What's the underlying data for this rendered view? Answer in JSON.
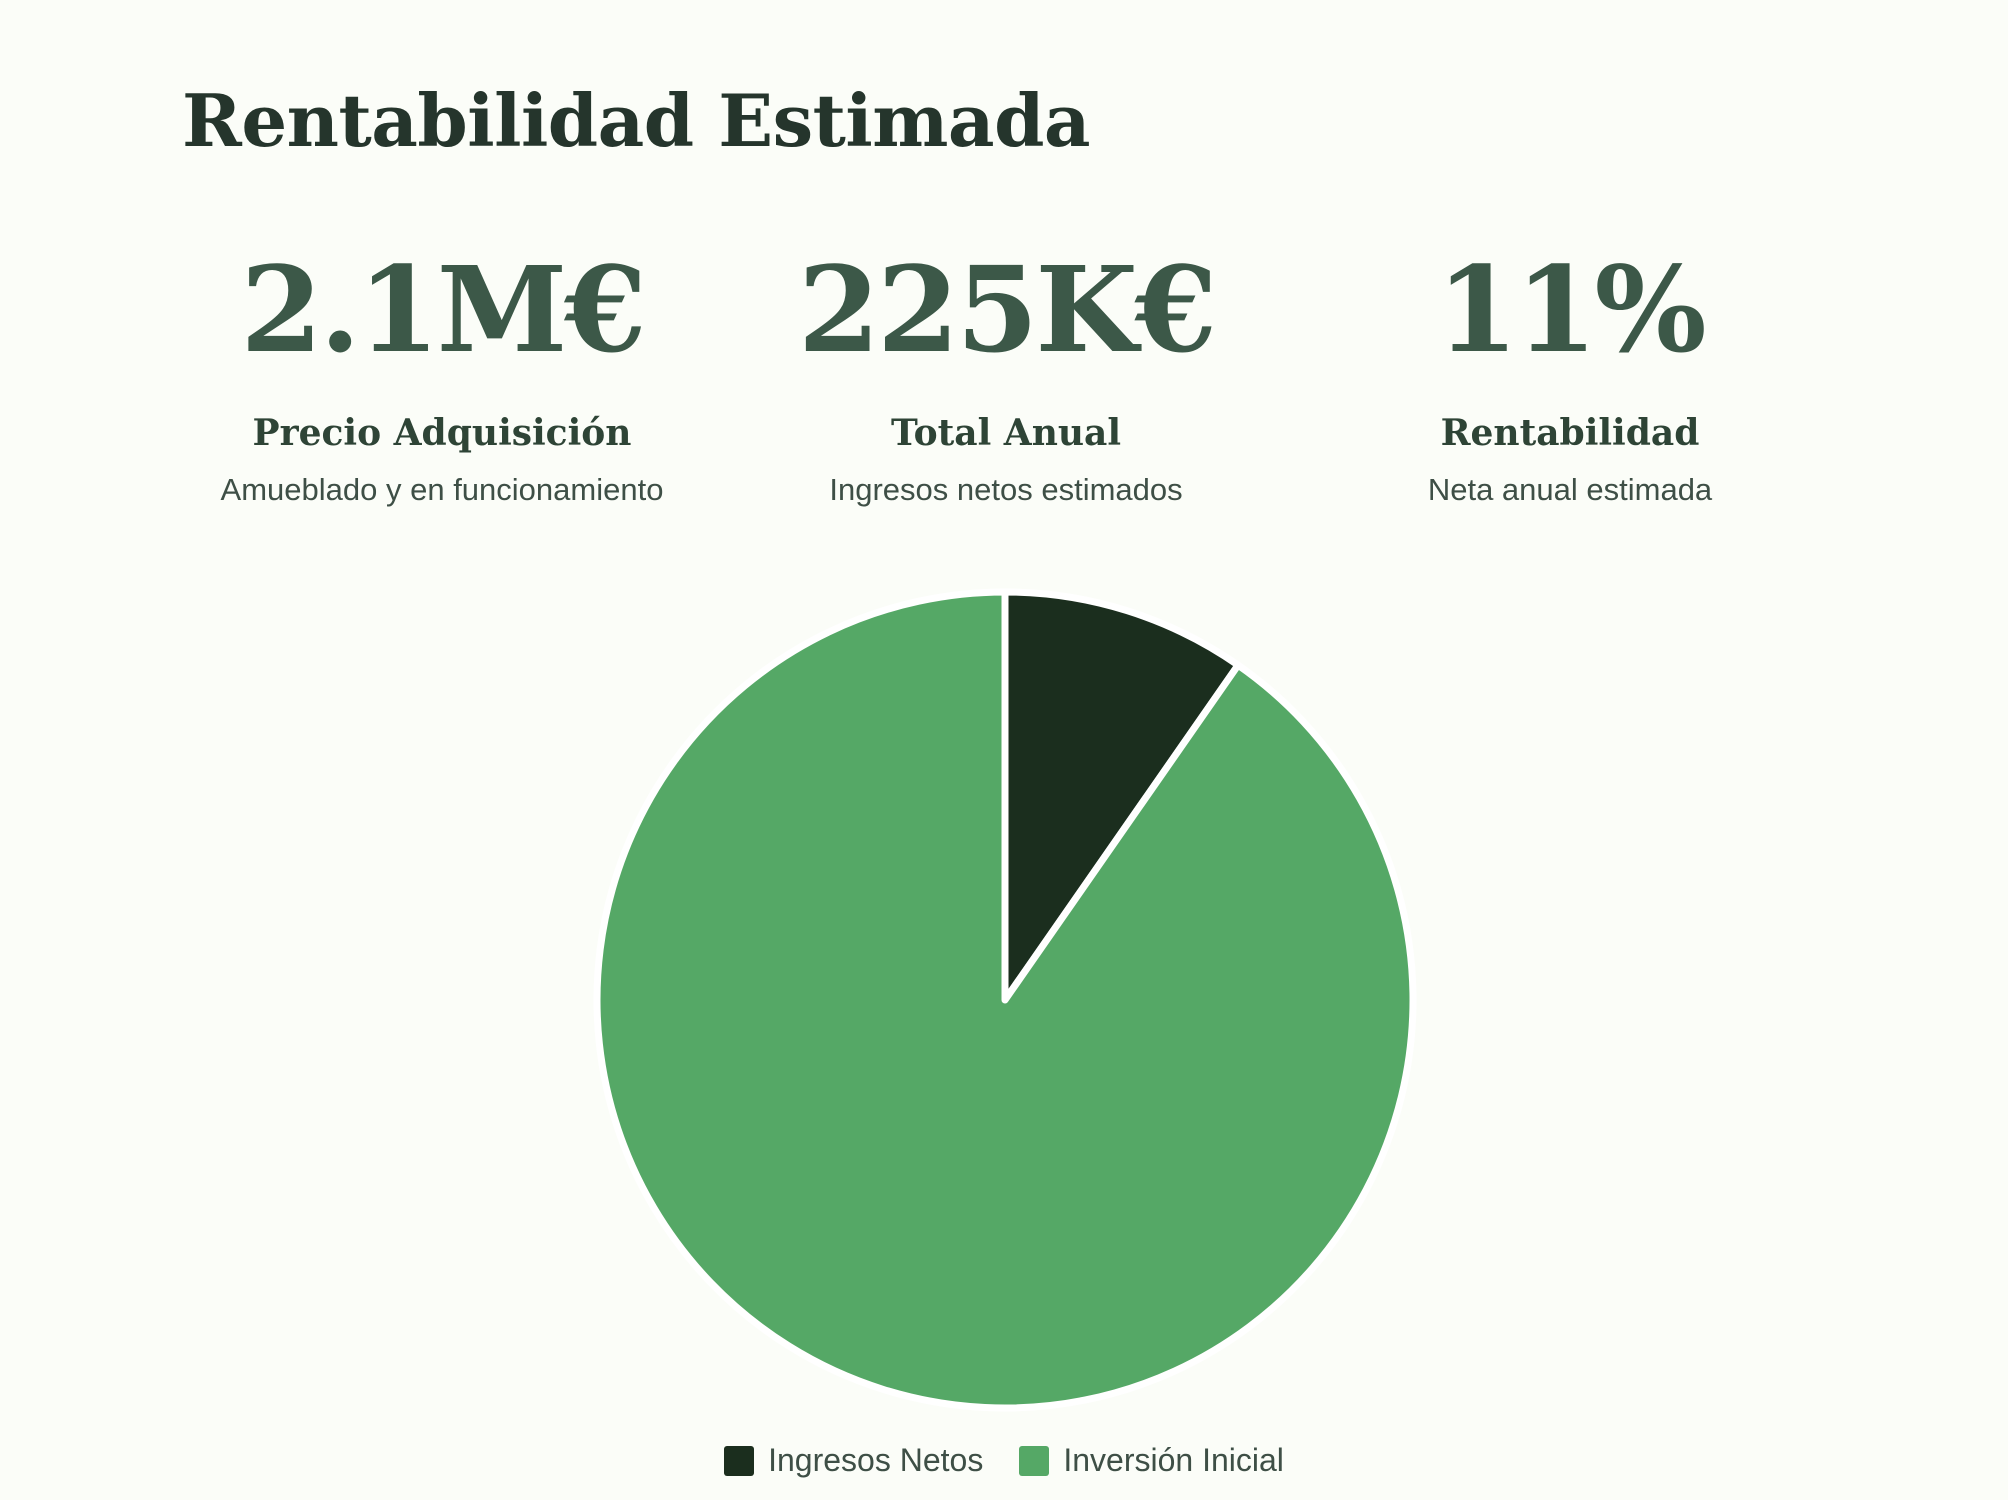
{
  "page": {
    "title": "Rentabilidad Estimada"
  },
  "stats": [
    {
      "value": "2.1M€",
      "label": "Precio Adquisición",
      "description": "Amueblado y en funcionamiento"
    },
    {
      "value": "225K€",
      "label": "Total Anual",
      "description": "Ingresos netos estimados"
    },
    {
      "value": "11%",
      "label": "Rentabilidad",
      "description": "Neta anual estimada"
    }
  ],
  "chart_data": {
    "type": "pie",
    "title": "",
    "categories": [
      "Ingresos Netos",
      "Inversión Inicial"
    ],
    "values": [
      225,
      2100
    ],
    "colors": [
      "#1b2e1e",
      "#55a866"
    ],
    "legend_position": "bottom-center",
    "start_angle": "top",
    "direction": "clockwise"
  }
}
